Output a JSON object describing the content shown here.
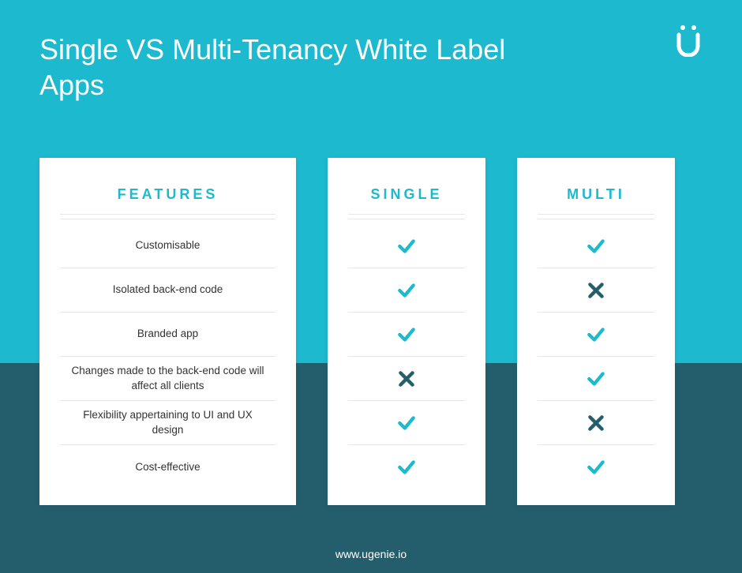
{
  "colors": {
    "bg_top": "#1cb9cf",
    "bg_bottom": "#245e6d",
    "accent": "#1cb9cf",
    "rule": "#d8ecef",
    "card_bg": "#ffffff",
    "title_color": "#ffffff",
    "feature_text": "#333333",
    "cross_color": "#245e6d",
    "check_color": "#1cb9cf"
  },
  "title": "Single VS Multi-Tenancy White Label Apps",
  "footer": "www.ugenie.io",
  "columns": {
    "features_header": "FEATURES",
    "single_header": "SINGLE",
    "multi_header": "MULTI"
  },
  "features": [
    "Customisable",
    "Isolated back-end code",
    "Branded app",
    "Changes made to the back-end code will affect all clients",
    "Flexibility appertaining to UI and UX design",
    "Cost-effective"
  ],
  "single": [
    "check",
    "check",
    "check",
    "cross",
    "check",
    "check"
  ],
  "multi": [
    "check",
    "cross",
    "check",
    "check",
    "cross",
    "check"
  ]
}
